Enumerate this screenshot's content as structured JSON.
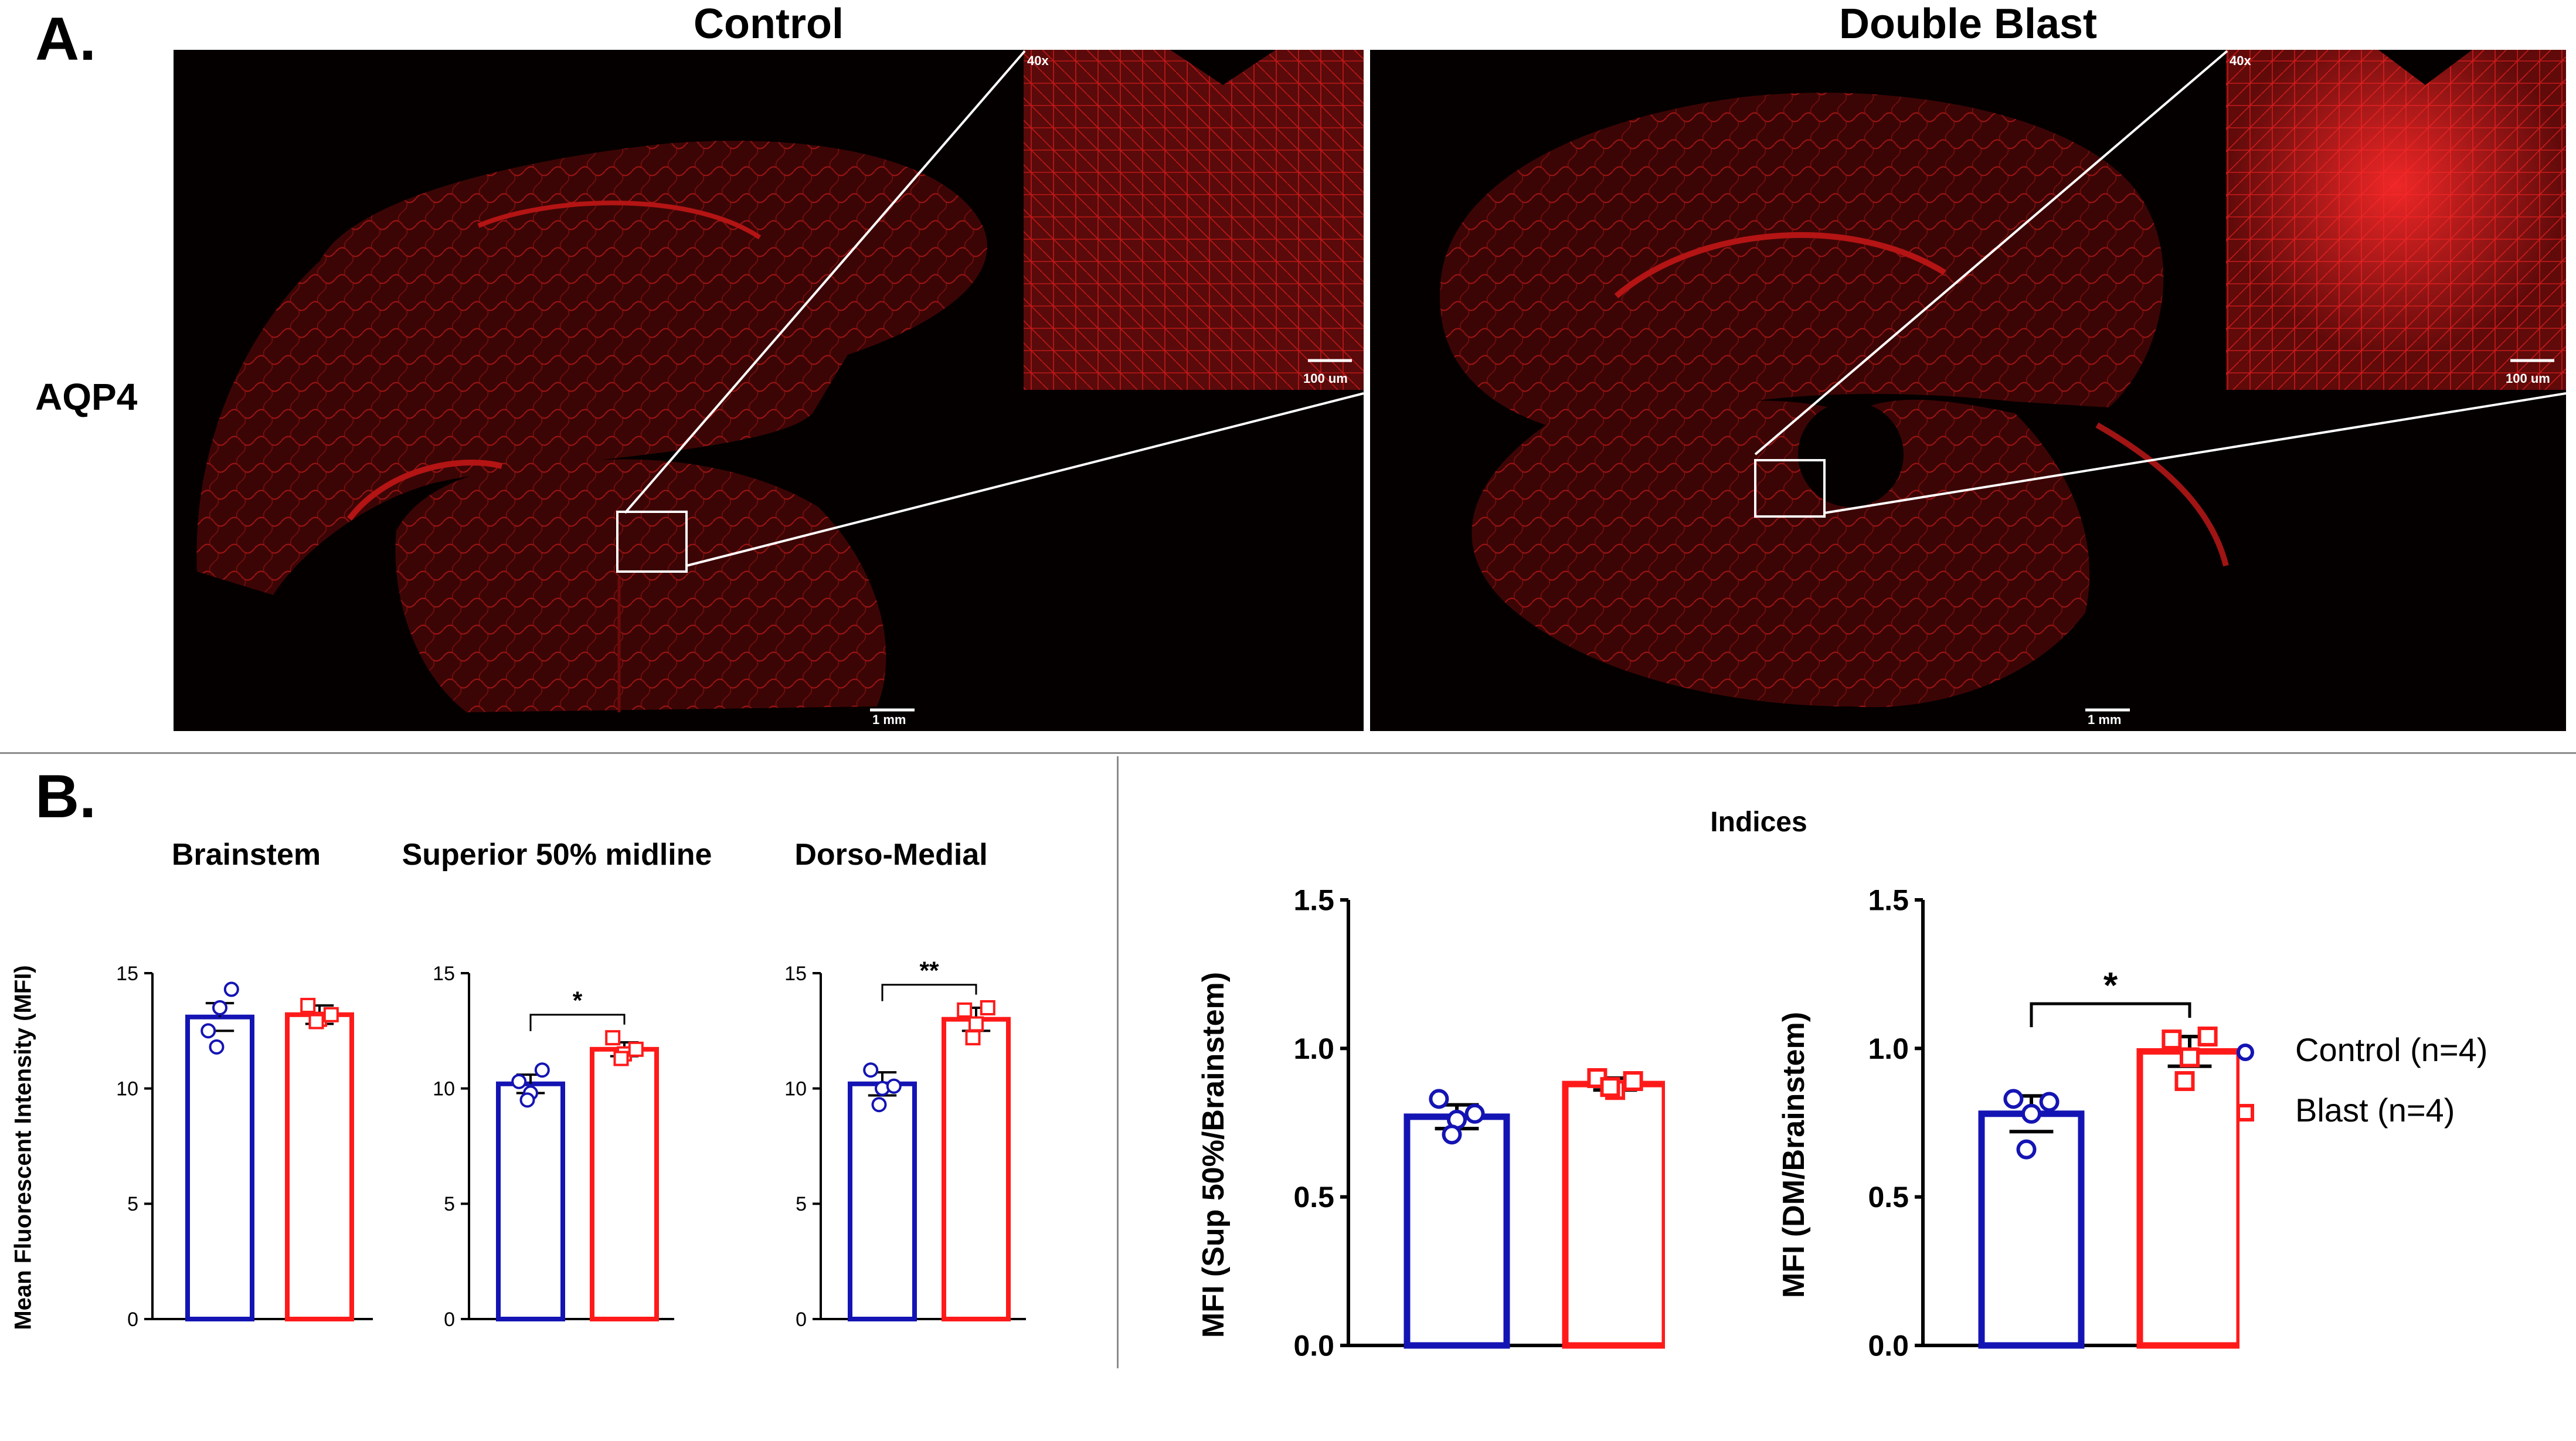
{
  "panel_a": {
    "letter": "A.",
    "row_label": "AQP4",
    "images": [
      {
        "title": "Control",
        "magnification": "40x",
        "inset_scale": "100 um",
        "scale": "1 mm"
      },
      {
        "title": "Double Blast",
        "magnification": "40x",
        "inset_scale": "100 um",
        "scale": "1 mm"
      }
    ]
  },
  "panel_b": {
    "letter": "B.",
    "shared_ylabel": "Mean Fluorescent Intensity (MFI)",
    "indices_title": "Indices",
    "legend": [
      {
        "label": "Control (n=4)",
        "color": "#1414b4",
        "marker": "circle"
      },
      {
        "label": "Blast (n=4)",
        "color": "#ff1a1a",
        "marker": "square"
      }
    ]
  },
  "colors": {
    "control": "#1414b4",
    "blast": "#ff1a1a",
    "tissue": "#c81414"
  },
  "chart_data": [
    {
      "type": "bar",
      "title": "Brainstem",
      "ylabel": "",
      "categories": [
        "Control",
        "Blast"
      ],
      "ylim": [
        0,
        15
      ],
      "yticks": [
        0,
        5,
        10,
        15
      ],
      "ytick_labels": [
        "0",
        "5",
        "10",
        "15"
      ],
      "series": [
        {
          "values": [
            13.1,
            13.2
          ]
        }
      ],
      "error": [
        0.6,
        0.4
      ],
      "points": [
        [
          12.5,
          13.5,
          14.3,
          11.8
        ],
        [
          13.6,
          13.0,
          13.2,
          12.9
        ]
      ],
      "significance": null
    },
    {
      "type": "bar",
      "title": "Superior 50% midline",
      "ylabel": "",
      "categories": [
        "Control",
        "Blast"
      ],
      "ylim": [
        0,
        15
      ],
      "yticks": [
        0,
        5,
        10,
        15
      ],
      "ytick_labels": [
        "0",
        "5",
        "10",
        "15"
      ],
      "series": [
        {
          "values": [
            10.2,
            11.7
          ]
        }
      ],
      "error": [
        0.4,
        0.3
      ],
      "points": [
        [
          10.3,
          9.8,
          10.8,
          9.5
        ],
        [
          12.2,
          11.5,
          11.7,
          11.3
        ]
      ],
      "significance": "*"
    },
    {
      "type": "bar",
      "title": "Dorso-Medial",
      "ylabel": "",
      "categories": [
        "Control",
        "Blast"
      ],
      "ylim": [
        0,
        15
      ],
      "yticks": [
        0,
        5,
        10,
        15
      ],
      "ytick_labels": [
        "0",
        "5",
        "10",
        "15"
      ],
      "series": [
        {
          "values": [
            10.2,
            13.0
          ]
        }
      ],
      "error": [
        0.5,
        0.5
      ],
      "points": [
        [
          10.8,
          10.0,
          10.1,
          9.3
        ],
        [
          13.4,
          12.8,
          13.5,
          12.2
        ]
      ],
      "significance": "**"
    },
    {
      "type": "bar",
      "title": "",
      "ylabel": "MFI (Sup 50%/Brainstem)",
      "categories": [
        "Control",
        "Blast"
      ],
      "ylim": [
        0,
        1.5
      ],
      "yticks": [
        0,
        0.5,
        1.0,
        1.5
      ],
      "ytick_labels": [
        "0.0",
        "0.5",
        "1.0",
        "1.5"
      ],
      "series": [
        {
          "values": [
            0.77,
            0.88
          ]
        }
      ],
      "error": [
        0.04,
        0.02
      ],
      "points": [
        [
          0.83,
          0.76,
          0.78,
          0.71
        ],
        [
          0.9,
          0.86,
          0.89,
          0.87
        ]
      ],
      "significance": null
    },
    {
      "type": "bar",
      "title": "",
      "ylabel": "MFI (DM/Brainstem)",
      "categories": [
        "Control",
        "Blast"
      ],
      "ylim": [
        0,
        1.5
      ],
      "yticks": [
        0,
        0.5,
        1.0,
        1.5
      ],
      "ytick_labels": [
        "0.0",
        "0.5",
        "1.0",
        "1.5"
      ],
      "series": [
        {
          "values": [
            0.78,
            0.99
          ]
        }
      ],
      "error": [
        0.06,
        0.05
      ],
      "points": [
        [
          0.83,
          0.78,
          0.82,
          0.66
        ],
        [
          1.03,
          0.97,
          1.04,
          0.89
        ]
      ],
      "significance": "*"
    }
  ]
}
